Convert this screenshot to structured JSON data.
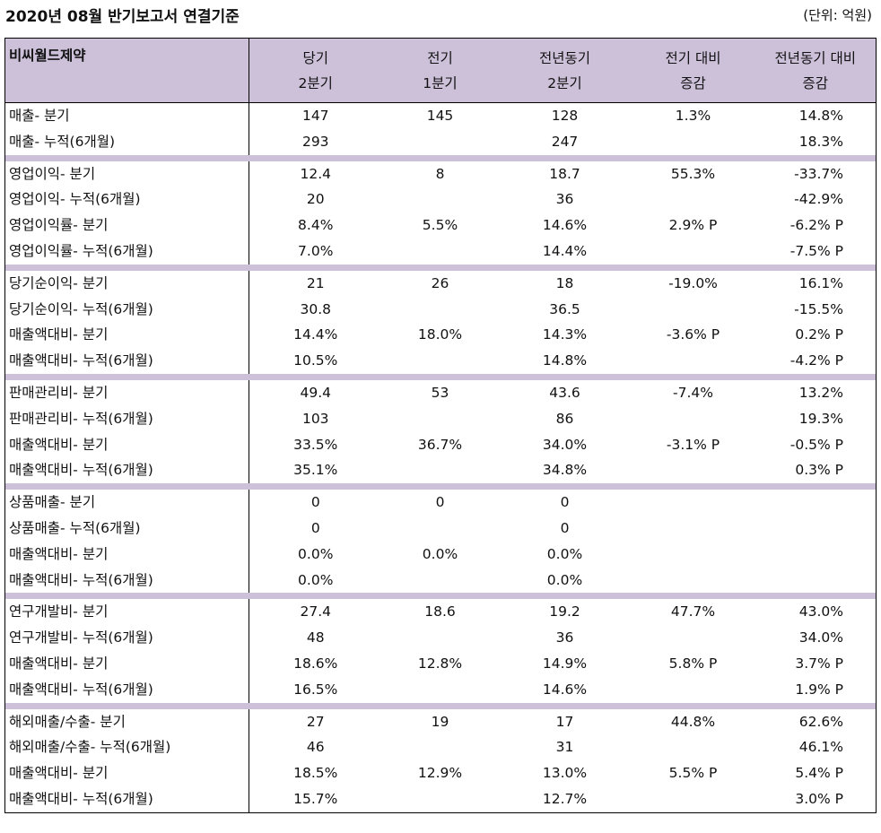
{
  "title": "2020년 08월 반기보고서 연결기준",
  "unit": "(단위: 억원)",
  "header": {
    "company": "비씨월드제약",
    "cols": [
      {
        "l1": "당기",
        "l2": "2분기"
      },
      {
        "l1": "전기",
        "l2": "1분기"
      },
      {
        "l1": "전년동기",
        "l2": "2분기"
      },
      {
        "l1": "전기 대비",
        "l2": "증감"
      },
      {
        "l1": "전년동기 대비",
        "l2": "증감"
      }
    ]
  },
  "groups": [
    {
      "rows": [
        [
          "매출- 분기",
          "147",
          "145",
          "128",
          "1.3%",
          "14.8%"
        ],
        [
          "매출- 누적(6개월)",
          "293",
          "",
          "247",
          "",
          "18.3%"
        ]
      ]
    },
    {
      "rows": [
        [
          "영업이익- 분기",
          "12.4",
          "8",
          "18.7",
          "55.3%",
          "-33.7%"
        ],
        [
          "영업이익- 누적(6개월)",
          "20",
          "",
          "36",
          "",
          "-42.9%"
        ],
        [
          "영업이익률- 분기",
          "8.4%",
          "5.5%",
          "14.6%",
          "2.9% P",
          "-6.2% P"
        ],
        [
          "영업이익률- 누적(6개월)",
          "7.0%",
          "",
          "14.4%",
          "",
          "-7.5% P"
        ]
      ]
    },
    {
      "rows": [
        [
          "당기순이익- 분기",
          "21",
          "26",
          "18",
          "-19.0%",
          "16.1%"
        ],
        [
          "당기순이익- 누적(6개월)",
          "30.8",
          "",
          "36.5",
          "",
          "-15.5%"
        ],
        [
          "매출액대비- 분기",
          "14.4%",
          "18.0%",
          "14.3%",
          "-3.6% P",
          "0.2% P"
        ],
        [
          "매출액대비- 누적(6개월)",
          "10.5%",
          "",
          "14.8%",
          "",
          "-4.2% P"
        ]
      ]
    },
    {
      "rows": [
        [
          "판매관리비- 분기",
          "49.4",
          "53",
          "43.6",
          "-7.4%",
          "13.2%"
        ],
        [
          "판매관리비- 누적(6개월)",
          "103",
          "",
          "86",
          "",
          "19.3%"
        ],
        [
          "매출액대비- 분기",
          "33.5%",
          "36.7%",
          "34.0%",
          "-3.1% P",
          "-0.5% P"
        ],
        [
          "매출액대비- 누적(6개월)",
          "35.1%",
          "",
          "34.8%",
          "",
          "0.3% P"
        ]
      ]
    },
    {
      "rows": [
        [
          "상품매출- 분기",
          "0",
          "0",
          "0",
          "",
          ""
        ],
        [
          "상품매출- 누적(6개월)",
          "0",
          "",
          "0",
          "",
          ""
        ],
        [
          "매출액대비- 분기",
          "0.0%",
          "0.0%",
          "0.0%",
          "",
          ""
        ],
        [
          "매출액대비- 누적(6개월)",
          "0.0%",
          "",
          "0.0%",
          "",
          ""
        ]
      ]
    },
    {
      "rows": [
        [
          "연구개발비- 분기",
          "27.4",
          "18.6",
          "19.2",
          "47.7%",
          "43.0%"
        ],
        [
          "연구개발비- 누적(6개월)",
          "48",
          "",
          "36",
          "",
          "34.0%"
        ],
        [
          "매출액대비- 분기",
          "18.6%",
          "12.8%",
          "14.9%",
          "5.8% P",
          "3.7% P"
        ],
        [
          "매출액대비- 누적(6개월)",
          "16.5%",
          "",
          "14.6%",
          "",
          "1.9% P"
        ]
      ]
    },
    {
      "rows": [
        [
          "해외매출/수출- 분기",
          "27",
          "19",
          "17",
          "44.8%",
          "62.6%"
        ],
        [
          "해외매출/수출- 누적(6개월)",
          "46",
          "",
          "31",
          "",
          "46.1%"
        ],
        [
          "매출액대비- 분기",
          "18.5%",
          "12.9%",
          "13.0%",
          "5.5% P",
          "5.4% P"
        ],
        [
          "매출액대비- 누적(6개월)",
          "15.7%",
          "",
          "12.7%",
          "",
          "3.0% P"
        ]
      ]
    }
  ]
}
